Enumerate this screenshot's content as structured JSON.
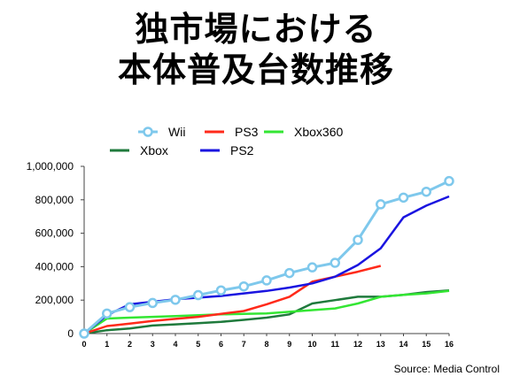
{
  "title": {
    "line1": "独市場における",
    "line2": "本体普及台数推移"
  },
  "source": "Source: Media Control",
  "chart_data": {
    "type": "line",
    "x": [
      0,
      1,
      2,
      3,
      4,
      5,
      6,
      7,
      8,
      9,
      10,
      11,
      12,
      13,
      14,
      15,
      16
    ],
    "ylim": [
      0,
      1000000
    ],
    "y_ticks": [
      "0",
      "200,000",
      "400,000",
      "600,000",
      "800,000",
      "1,000,000"
    ],
    "x_ticks": [
      "0",
      "1",
      "2",
      "3",
      "4",
      "5",
      "6",
      "7",
      "8",
      "9",
      "10",
      "11",
      "12",
      "13",
      "14",
      "15",
      "16"
    ],
    "grid": false,
    "legend": "top",
    "series": [
      {
        "name": "Wii",
        "color": "#7ec8ec",
        "markers": true,
        "values": [
          0,
          120000,
          158000,
          183000,
          202000,
          230000,
          258000,
          282000,
          318000,
          362000,
          396000,
          423000,
          560000,
          773000,
          813000,
          848000,
          912000
        ]
      },
      {
        "name": "PS3",
        "color": "#ff2a1a",
        "markers": false,
        "values": [
          null,
          null,
          null,
          null,
          null,
          null,
          null,
          null,
          null,
          null,
          null,
          null,
          null,
          null,
          null,
          null,
          null
        ],
        "values_from": 0,
        "points": [
          [
            0,
            0
          ],
          [
            1,
            45000
          ],
          [
            2,
            60000
          ],
          [
            3,
            75000
          ],
          [
            4,
            88000
          ],
          [
            5,
            100000
          ],
          [
            6,
            118000
          ],
          [
            7,
            135000
          ],
          [
            8,
            175000
          ],
          [
            9,
            220000
          ],
          [
            10,
            310000
          ],
          [
            11,
            340000
          ],
          [
            12,
            370000
          ],
          [
            13,
            405000
          ]
        ]
      },
      {
        "name": "Xbox360",
        "color": "#33e633",
        "markers": false,
        "points": [
          [
            0,
            0
          ],
          [
            1,
            90000
          ],
          [
            2,
            95000
          ],
          [
            3,
            100000
          ],
          [
            4,
            105000
          ],
          [
            5,
            110000
          ],
          [
            6,
            115000
          ],
          [
            7,
            118000
          ],
          [
            8,
            120000
          ],
          [
            9,
            130000
          ],
          [
            10,
            140000
          ],
          [
            11,
            150000
          ],
          [
            12,
            180000
          ],
          [
            13,
            220000
          ],
          [
            14,
            232000
          ],
          [
            15,
            240000
          ],
          [
            16,
            255000
          ]
        ]
      },
      {
        "name": "Xbox",
        "color": "#1f7a3c",
        "markers": false,
        "points": [
          [
            0,
            0
          ],
          [
            1,
            20000
          ],
          [
            2,
            30000
          ],
          [
            3,
            48000
          ],
          [
            4,
            55000
          ],
          [
            5,
            62000
          ],
          [
            6,
            70000
          ],
          [
            7,
            82000
          ],
          [
            8,
            95000
          ],
          [
            9,
            115000
          ],
          [
            10,
            180000
          ],
          [
            11,
            200000
          ],
          [
            12,
            220000
          ],
          [
            13,
            220000
          ],
          [
            14,
            232000
          ],
          [
            15,
            248000
          ],
          [
            16,
            258000
          ]
        ]
      },
      {
        "name": "PS2",
        "color": "#1a14e0",
        "markers": false,
        "points": [
          [
            0,
            0
          ],
          [
            1,
            110000
          ],
          [
            2,
            175000
          ],
          [
            3,
            190000
          ],
          [
            4,
            205000
          ],
          [
            5,
            215000
          ],
          [
            6,
            225000
          ],
          [
            7,
            240000
          ],
          [
            8,
            255000
          ],
          [
            9,
            275000
          ],
          [
            10,
            300000
          ],
          [
            11,
            340000
          ],
          [
            12,
            410000
          ],
          [
            13,
            510000
          ],
          [
            14,
            695000
          ],
          [
            15,
            765000
          ],
          [
            16,
            820000
          ]
        ]
      }
    ]
  }
}
